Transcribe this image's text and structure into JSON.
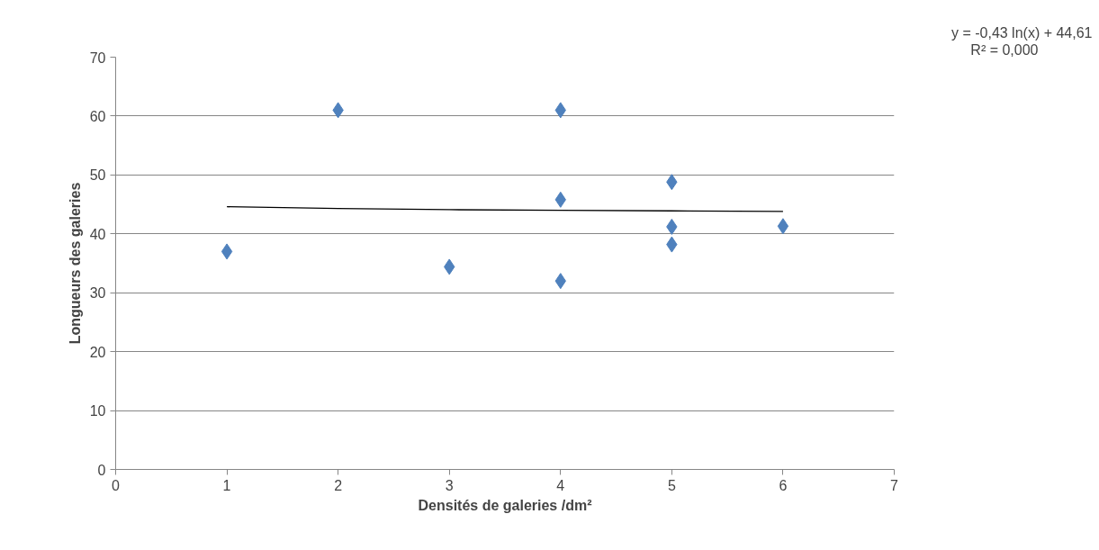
{
  "chart_data": {
    "type": "scatter",
    "xlabel": "Densités de galeries /dm²",
    "ylabel": "Longueurs des galeries",
    "x": [
      1,
      2,
      3,
      4,
      4,
      4,
      5,
      5,
      5,
      6
    ],
    "series": [
      {
        "color": "#4f81bd",
        "marker": "diamond",
        "values": [
          37,
          61,
          34.4,
          61,
          45.8,
          32,
          48.8,
          41.2,
          38.2,
          41.3
        ]
      },
      {
        "type": "line",
        "color": "#000000",
        "marker": "none",
        "x": [
          1,
          2,
          3,
          4,
          5,
          6
        ],
        "values": [
          44.6,
          44.3,
          44.1,
          44.0,
          43.9,
          43.8
        ]
      }
    ],
    "xlim": [
      0,
      7
    ],
    "xticks": [
      0,
      1,
      2,
      3,
      4,
      5,
      6,
      7
    ],
    "ylim": [
      0,
      70
    ],
    "yticks": [
      0,
      10,
      20,
      30,
      40,
      50,
      60,
      70
    ],
    "grid": "y",
    "annotations": [
      "y = -0,43 ln(x) + 44,61",
      "R² = 0,000"
    ]
  }
}
